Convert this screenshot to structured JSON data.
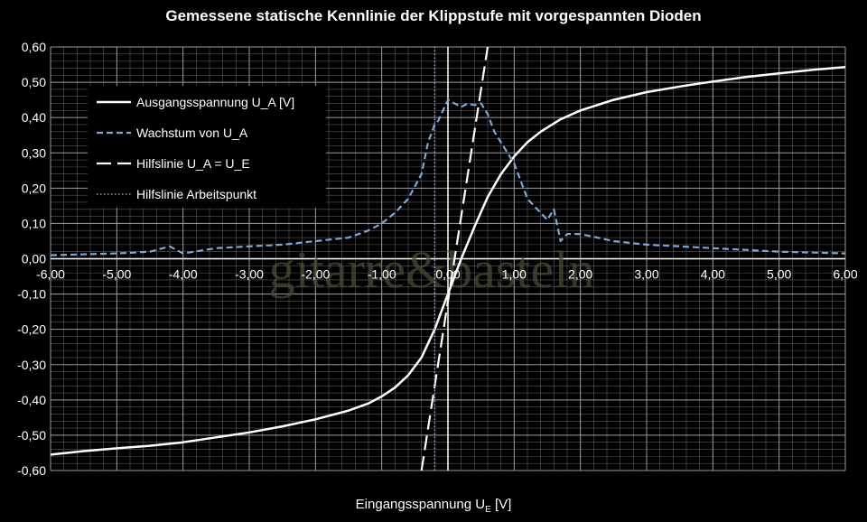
{
  "chart_data": {
    "type": "line",
    "title": "Gemessene statische Kennlinie der Klippstufe mit vorgespannten Dioden",
    "xlabel": "Eingangsspannung U",
    "xlabel_sub": "E",
    "xlabel_unit": "[V]",
    "xlim": [
      -6,
      6
    ],
    "ylim": [
      -0.6,
      0.6
    ],
    "x_ticks": [
      "-6,00",
      "-5,00",
      "-4,00",
      "-3,00",
      "-2,00",
      "-1,00",
      "0,00",
      "1,00",
      "2,00",
      "3,00",
      "4,00",
      "5,00",
      "6,00"
    ],
    "y_ticks": [
      "0,60",
      "0,50",
      "0,40",
      "0,30",
      "0,20",
      "0,10",
      "0,00",
      "-0,10",
      "-0,20",
      "-0,30",
      "-0,40",
      "-0,50",
      "-0,60"
    ],
    "grid": true,
    "legend_position": "top-left",
    "watermark": "gitarre&basteln",
    "series": [
      {
        "name": "Ausgangsspannung U_A [V]",
        "style": "solid",
        "color": "#ffffff",
        "x": [
          -6,
          -5.5,
          -5,
          -4.5,
          -4,
          -3.5,
          -3,
          -2.5,
          -2,
          -1.5,
          -1.2,
          -1,
          -0.8,
          -0.6,
          -0.4,
          -0.2,
          0,
          0.2,
          0.4,
          0.6,
          0.8,
          1,
          1.2,
          1.4,
          1.7,
          2,
          2.5,
          3,
          3.5,
          4,
          4.5,
          5,
          5.5,
          6
        ],
        "y": [
          -0.555,
          -0.545,
          -0.537,
          -0.53,
          -0.52,
          -0.506,
          -0.492,
          -0.475,
          -0.455,
          -0.43,
          -0.41,
          -0.39,
          -0.365,
          -0.33,
          -0.28,
          -0.2,
          -0.1,
          0,
          0.09,
          0.175,
          0.24,
          0.29,
          0.33,
          0.36,
          0.395,
          0.42,
          0.45,
          0.472,
          0.488,
          0.502,
          0.515,
          0.525,
          0.535,
          0.543
        ]
      },
      {
        "name": "Wachstum von U_A",
        "style": "dashed",
        "color": "#7ba7d9",
        "x": [
          -6,
          -5,
          -4.5,
          -4.2,
          -4,
          -3.5,
          -3,
          -2.5,
          -2,
          -1.5,
          -1.2,
          -1,
          -0.8,
          -0.6,
          -0.4,
          -0.3,
          -0.2,
          -0.15,
          -0.1,
          0,
          0.1,
          0.2,
          0.3,
          0.4,
          0.5,
          0.6,
          0.7,
          0.8,
          0.9,
          1,
          1.1,
          1.2,
          1.4,
          1.5,
          1.6,
          1.7,
          1.8,
          2,
          2.5,
          3,
          3.5,
          4,
          5,
          6
        ],
        "y": [
          0.01,
          0.015,
          0.02,
          0.035,
          0.015,
          0.03,
          0.035,
          0.04,
          0.05,
          0.06,
          0.08,
          0.1,
          0.13,
          0.17,
          0.24,
          0.33,
          0.38,
          0.39,
          0.41,
          0.45,
          0.44,
          0.43,
          0.44,
          0.435,
          0.44,
          0.41,
          0.36,
          0.33,
          0.3,
          0.27,
          0.22,
          0.17,
          0.13,
          0.11,
          0.14,
          0.05,
          0.07,
          0.07,
          0.05,
          0.04,
          0.035,
          0.03,
          0.02,
          0.015
        ]
      },
      {
        "name": "Hilfslinie U_A = U_E",
        "style": "long-dashed",
        "color": "#ffffff",
        "x": [
          -0.4,
          0.6
        ],
        "y": [
          -0.6,
          0.6
        ]
      },
      {
        "name": "Hilfslinie Arbeitspunkt",
        "style": "dotted",
        "color": "#7ba7d9",
        "x": [
          -0.2,
          -0.2
        ],
        "y": [
          -0.6,
          0.6
        ]
      }
    ]
  }
}
